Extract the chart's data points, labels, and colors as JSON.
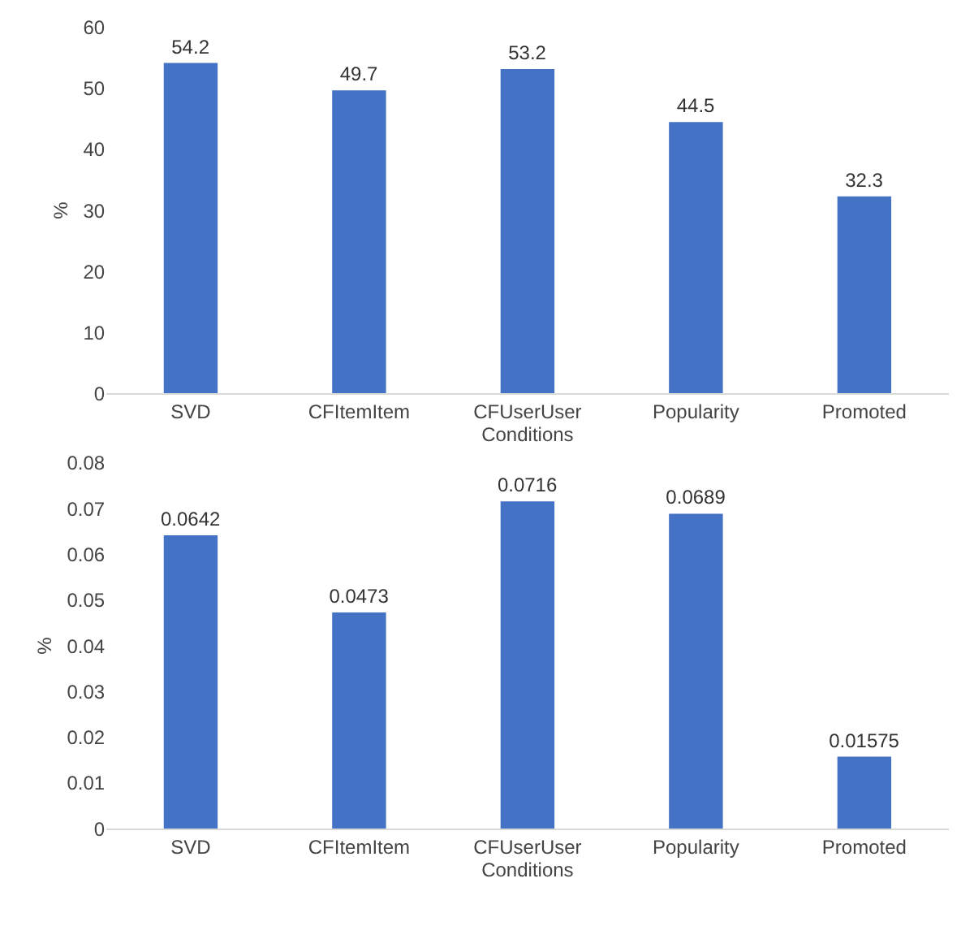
{
  "chart_data": [
    {
      "type": "bar",
      "categories": [
        "SVD",
        "CFItemItem",
        "CFUserUser",
        "Popularity",
        "Promoted"
      ],
      "values": [
        54.2,
        49.7,
        53.2,
        44.5,
        32.3
      ],
      "color": "#4472c4",
      "xlabel": "Conditions",
      "ylabel": "%",
      "ylim": [
        0,
        60
      ],
      "yticks": [
        0,
        10,
        20,
        30,
        40,
        50,
        60
      ],
      "data_labels": true
    },
    {
      "type": "bar",
      "categories": [
        "SVD",
        "CFItemItem",
        "CFUserUser",
        "Popularity",
        "Promoted"
      ],
      "values": [
        0.0642,
        0.0473,
        0.0716,
        0.0689,
        0.01575
      ],
      "color": "#4472c4",
      "xlabel": "Conditions",
      "ylabel": "%",
      "ylim": [
        0,
        0.08
      ],
      "yticks": [
        0,
        0.01,
        0.02,
        0.03,
        0.04,
        0.05,
        0.06,
        0.07,
        0.08
      ],
      "data_labels": true
    }
  ]
}
